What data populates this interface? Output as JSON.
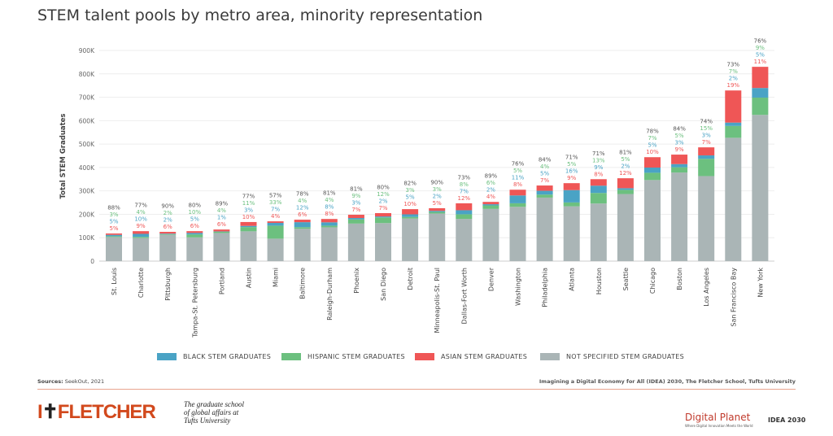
{
  "title": "STEM talent pools by metro area, minority representation",
  "chart_data": {
    "type": "bar",
    "stacked": true,
    "ylabel": "Total STEM Graduates",
    "ylim": [
      0,
      900000
    ],
    "yticks": [
      "0",
      "100K",
      "200K",
      "300K",
      "400K",
      "500K",
      "600K",
      "700K",
      "800K",
      "900K"
    ],
    "grid": true,
    "legend_position": "bottom",
    "categories": [
      "St. Louis",
      "Charlotte",
      "Pittsburgh",
      "Tampa-St. Petersburg",
      "Portland",
      "Austin",
      "Miami",
      "Baltimore",
      "Raleigh-Durham",
      "Phoenix",
      "San Diego",
      "Detroit",
      "Minneapolis-St. Paul",
      "Dallas-Fort Worth",
      "Denver",
      "Washington",
      "Philadelphia",
      "Atlanta",
      "Houston",
      "Seattle",
      "Chicago",
      "Boston",
      "Los Angeles",
      "San Francisco Bay",
      "New York"
    ],
    "totals": [
      118000,
      128000,
      125000,
      128000,
      135000,
      167000,
      170000,
      177000,
      180000,
      198000,
      205000,
      222000,
      226000,
      247000,
      253000,
      305000,
      323000,
      333000,
      350000,
      354000,
      444000,
      455000,
      486000,
      729000,
      830000
    ],
    "series": [
      {
        "name": "NOT SPECIFIED STEM GRADUATES",
        "color": "#aab5b6",
        "pct": [
          88,
          77,
          90,
          80,
          89,
          77,
          57,
          78,
          81,
          81,
          80,
          82,
          90,
          73,
          89,
          76,
          84,
          71,
          71,
          81,
          78,
          84,
          74,
          73,
          76
        ]
      },
      {
        "name": "HISPANIC STEM GRADUATES",
        "color": "#6cc07f",
        "pct": [
          3,
          4,
          2,
          10,
          4,
          11,
          33,
          4,
          4,
          9,
          12,
          3,
          3,
          8,
          6,
          5,
          4,
          5,
          13,
          5,
          7,
          5,
          15,
          7,
          9
        ]
      },
      {
        "name": "BLACK STEM GRADUATES",
        "color": "#4aa3c5",
        "pct": [
          5,
          10,
          2,
          5,
          1,
          3,
          7,
          12,
          8,
          3,
          2,
          5,
          2,
          7,
          2,
          11,
          5,
          16,
          9,
          2,
          5,
          3,
          3,
          2,
          5
        ]
      },
      {
        "name": "ASIAN STEM GRADUATES",
        "color": "#ef5656",
        "pct": [
          5,
          9,
          6,
          6,
          6,
          10,
          4,
          6,
          8,
          7,
          7,
          10,
          5,
          12,
          4,
          8,
          7,
          9,
          8,
          12,
          10,
          9,
          7,
          19,
          11
        ]
      }
    ],
    "legend_order": [
      "BLACK STEM GRADUATES",
      "HISPANIC STEM GRADUATES",
      "ASIAN STEM GRADUATES",
      "NOT SPECIFIED STEM GRADUATES"
    ]
  },
  "footer": {
    "sources_label": "Sources:",
    "sources": "SeekOut, 2021",
    "credit": "Imagining a Digital Economy for All (IDEA) 2030, The Fletcher School, Tufts University"
  },
  "logos": {
    "fletcher": "FLETCHER",
    "tagline": "The graduate school of global affairs at Tufts University",
    "digital_planet": "Digital Planet",
    "dp_sub": "Where Digital Innovation Meets the World",
    "idea": "IDEA 2030"
  }
}
